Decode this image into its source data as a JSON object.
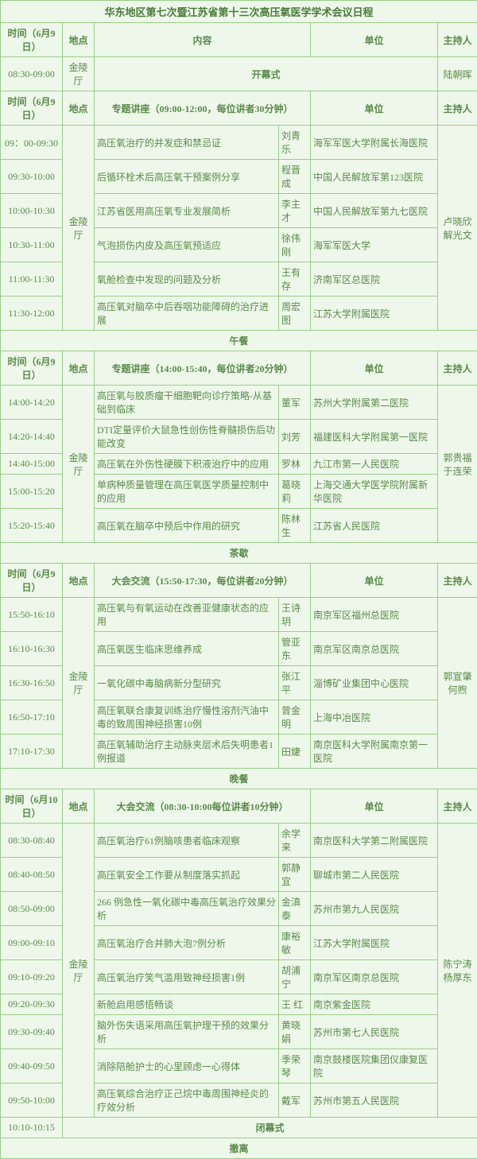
{
  "title": "华东地区第七次暨江苏省第十三次高压氧医学学术会议日程",
  "cols": {
    "time": "时间（6月9日）",
    "loc": "地点",
    "content": "内容",
    "unit": "单位",
    "host": "主持人",
    "time2": "时间（6月10日）"
  },
  "opening": {
    "time": "08:30-09:00",
    "loc": "金陵厅",
    "label": "开幕式",
    "host": "陆朝晖"
  },
  "s1": {
    "header": "专题讲座（09:00-12:00，每位讲者30分钟）",
    "loc": "金陵厅",
    "host": "卢晓欣\n解光文",
    "rows": [
      {
        "t": "09：00-09:30",
        "c": "高压氧治疗的并发症和禁忌证",
        "sp": "刘青乐",
        "u": "海军军医大学附属长海医院"
      },
      {
        "t": "09:30-10:00",
        "c": "后循环栓术后高压氧干预案例分享",
        "sp": "程晋成",
        "u": "中国人民解放军第123医院"
      },
      {
        "t": "10:00-10:30",
        "c": "江苏省医用高压氧专业发展简析",
        "sp": "李主才",
        "u": "中国人民解放军第九七医院"
      },
      {
        "t": "10:30-11:00",
        "c": "气泡损伤内皮及高压氧预适应",
        "sp": "徐伟刚",
        "u": "海军军医大学"
      },
      {
        "t": "11:00-11:30",
        "c": "氧舱检查中发现的问题及分析",
        "sp": "王有存",
        "u": "济南军区总医院"
      },
      {
        "t": "11:30-12:00",
        "c": "高压氧对脑卒中后吞咽功能障碍的治疗进展",
        "sp": "周宏图",
        "u": "江苏大学附属医院"
      }
    ]
  },
  "lunch": "午餐",
  "s2": {
    "header": "专题讲座（14:00-15:40，每位讲者20分钟）",
    "loc": "金陵厅",
    "host": "郭贵福\n于连荣",
    "rows": [
      {
        "t": "14:00-14:20",
        "c": "高压氧与胶质瘤干细胞靶向诊疗策略-从基础到临床",
        "sp": "董军",
        "u": "苏州大学附属第二医院"
      },
      {
        "t": "14:20-14:40",
        "c": "DTI定量评价大鼠急性创伤性脊髓损伤后功能改变",
        "sp": "刘芳",
        "u": "福建医科大学附属第一医院"
      },
      {
        "t": "14:40-15:00",
        "c": "高压氧在外伤性硬膜下积液治疗中的应用",
        "sp": "罗林",
        "u": "九江市第一人民医院"
      },
      {
        "t": "15:00-15:20",
        "c": "单病种质量管理在高压氧医学质量控制中的应用",
        "sp": "葛晓莉",
        "u": "上海交通大学医学院附属新华医院"
      },
      {
        "t": "15:20-15:40",
        "c": "高压氧在脑卒中预后中作用的研究",
        "sp": "陈林生",
        "u": "江苏省人民医院"
      }
    ]
  },
  "tea": "茶歇",
  "s3": {
    "header": "大会交流（15:50-17:30，每位讲者20分钟）",
    "loc": "金陵厅",
    "host": "郭宣肇\n何煦",
    "rows": [
      {
        "t": "15:50-16:10",
        "c": "高压氧与有氧运动在改善亚健康状态的应用",
        "sp": "王诗玥",
        "u": "南京军区福州总医院"
      },
      {
        "t": "16:10-16:30",
        "c": "高压氧医生临床思维养成",
        "sp": "管亚东",
        "u": "南京军区南京总医院"
      },
      {
        "t": "16:30-16:50",
        "c": "一氧化碳中毒脑病新分型研究",
        "sp": "张江平",
        "u": "淄博矿业集团中心医院"
      },
      {
        "t": "16:50-17:10",
        "c": "高压氧联合康复训练治疗慢性溶剂汽油中毒的致周围神经损害10例",
        "sp": "曾金明",
        "u": "上海中冶医院"
      },
      {
        "t": "17:10-17:30",
        "c": "高压氧辅助治疗主动脉夹层术后失明患者1例报道",
        "sp": "田婕",
        "u": "南京医科大学附属南京第一医院"
      }
    ]
  },
  "dinner": "晚餐",
  "s4": {
    "header": "大会交流（08:30-10:00每位讲者10分钟）",
    "loc": "金陵厅",
    "host": "陈宁涛\n杨厚东",
    "rows": [
      {
        "t": "08:30-08:40",
        "c": "高压氧治疗61例脑咳患者临床观察",
        "sp": "余学来",
        "u": "南京医科大学第二附属医院"
      },
      {
        "t": "08:40-08:50",
        "c": "高压氧安全工作要从制度落实抓起",
        "sp": "郭静宜",
        "u": "聊城市第二人民医院"
      },
      {
        "t": "08:50-09:00",
        "c": "266 例急性一氧化碳中毒高压氧治疗效果分析",
        "sp": "金滇泰",
        "u": "苏州市第九人民医院"
      },
      {
        "t": "09:00-09:10",
        "c": "高压氧治疗合并肺大泡7例分析",
        "sp": "康裕敏",
        "u": "江苏大学附属医院"
      },
      {
        "t": "09:10-09:20",
        "c": "高压氧治疗笑气滥用致神经损害1例",
        "sp": "胡浦宁",
        "u": "南京军区南京总医院"
      },
      {
        "t": "09:20-09:30",
        "c": "新舱启用感悟畅谈",
        "sp": "王 红",
        "u": "南京紫金医院"
      },
      {
        "t": "09:30-09:40",
        "c": "脑外伤失语采用高压氧护理干预的效果分析",
        "sp": "黄晓娟",
        "u": "苏州市第七人民医院"
      },
      {
        "t": "09:40-09:50",
        "c": "消除陪舱护士的心里顾虑一心得体",
        "sp": "季荣琴",
        "u": "南京鼓楼医院集团仪康复医院"
      },
      {
        "t": "09:50-10:00",
        "c": "高压氧综合治疗正己烷中毒周围神经炎的疗效分析",
        "sp": "戴军",
        "u": "苏州市第五人民医院"
      }
    ]
  },
  "closing": {
    "t": "10:10-10:15",
    "label": "闭幕式"
  },
  "leave": "撤离"
}
